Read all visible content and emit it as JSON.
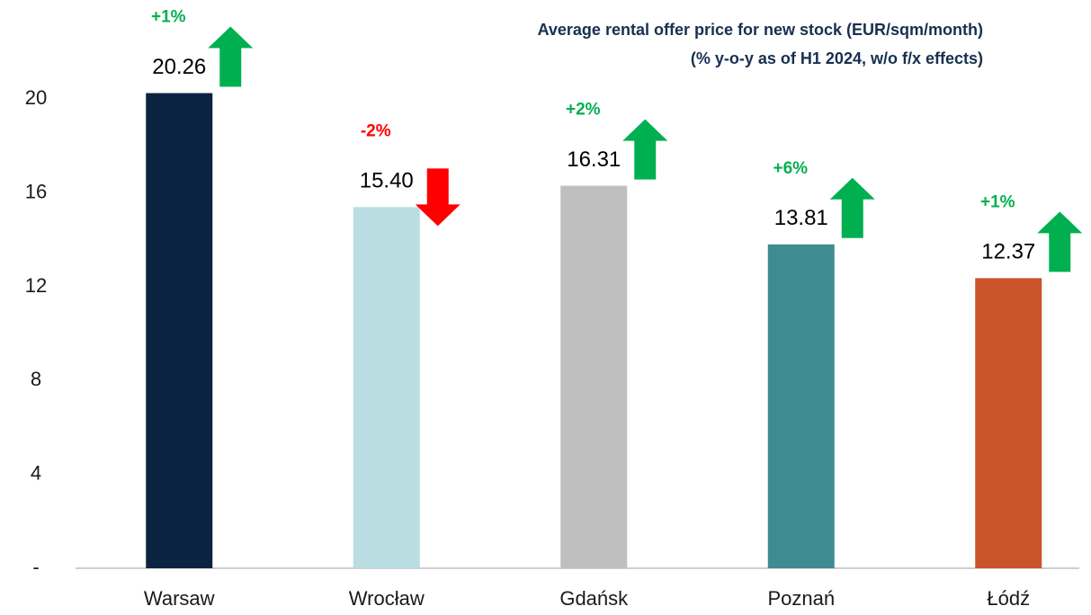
{
  "chart_data": {
    "type": "bar",
    "title": "Average rental offer price for new stock (EUR/sqm/month)",
    "subtitle": "(% y-o-y as of H1 2024, w/o f/x effects)",
    "categories": [
      "Warsaw",
      "Wrocław",
      "Gdańsk",
      "Poznań",
      "Łódź"
    ],
    "values": [
      20.26,
      15.4,
      16.31,
      13.81,
      12.37
    ],
    "value_labels": [
      "20.26",
      "15.40",
      "16.31",
      "13.81",
      "12.37"
    ],
    "colors": [
      "#0b2341",
      "#badde1",
      "#bfbfbf",
      "#3e8b92",
      "#c9532a"
    ],
    "changes": [
      1,
      -2,
      2,
      6,
      1
    ],
    "change_labels": [
      "+1%",
      "-2%",
      "+2%",
      "+6%",
      "+1%"
    ],
    "up_color": "#00b050",
    "down_color": "#ff0000",
    "ylim": [
      0,
      24
    ],
    "yticks": [
      {
        "value": 0,
        "label": "-"
      },
      4,
      8,
      12,
      16,
      20
    ],
    "grid": false
  }
}
